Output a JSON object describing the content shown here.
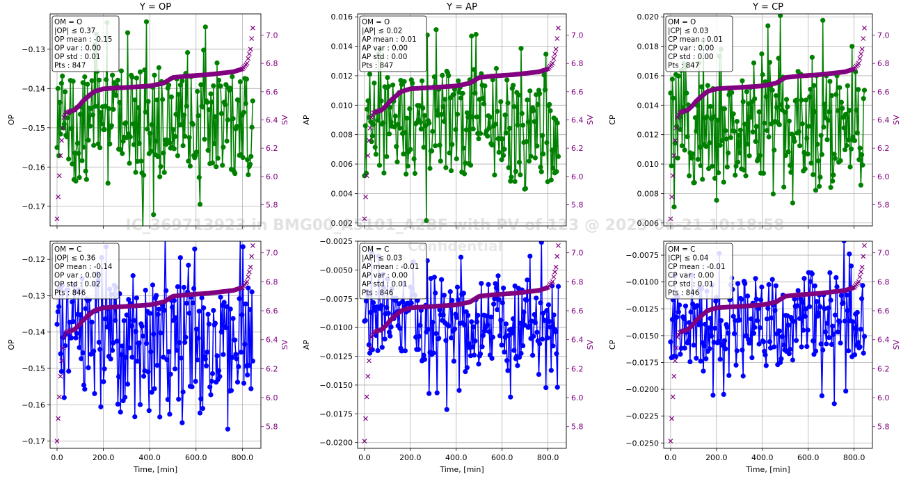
{
  "watermark": {
    "line1": "IC_369713923 in BMG00_A5101_A2BF with PV of 123 @  2025-06-21 10:18:58",
    "line2": "Confidential"
  },
  "colors": {
    "top_series": "#008000",
    "bottom_series": "#0000ff",
    "sv": "#800080",
    "grid": "#b0b0b0"
  },
  "chart_data": [
    {
      "type": "line",
      "title": "Y = OP",
      "ylabel": "OP",
      "y2label": "SV",
      "xlabel": "",
      "series_color": "#008000",
      "y_center": -0.148,
      "y_spread": 0.013,
      "y_wander": 0.006,
      "xlim": [
        -30,
        880
      ],
      "ylim": [
        -0.175,
        -0.121
      ],
      "yticks": [
        -0.17,
        -0.16,
        -0.15,
        -0.14,
        -0.13
      ],
      "yticklabels": [
        "−0.17",
        "−0.16",
        "−0.15",
        "−0.14",
        "−0.13"
      ],
      "xticks": [
        0,
        200,
        400,
        600,
        800
      ],
      "xticklabels": [
        "",
        "",
        "",
        "",
        ""
      ],
      "y2lim": [
        5.65,
        7.15
      ],
      "y2ticks": [
        5.8,
        6.0,
        6.2,
        6.4,
        6.6,
        6.8,
        7.0
      ],
      "y2ticklabels": [
        "5.8",
        "6.0",
        "6.2",
        "6.4",
        "6.6",
        "6.8",
        "7.0"
      ],
      "stats": [
        "OM = O",
        "|OP| ≤ 0.37",
        "OP mean : -0.15",
        "OP var  : 0.00",
        "OP std  : 0.01",
        "Pts          : 847"
      ]
    },
    {
      "type": "line",
      "title": "Y = AP",
      "ylabel": "AP",
      "y2label": "SV",
      "xlabel": "",
      "series_color": "#008000",
      "y_center": 0.0085,
      "y_spread": 0.0035,
      "y_wander": 0.0015,
      "xlim": [
        -30,
        880
      ],
      "ylim": [
        0.0018,
        0.0162
      ],
      "yticks": [
        0.002,
        0.004,
        0.006,
        0.008,
        0.01,
        0.012,
        0.014,
        0.016
      ],
      "yticklabels": [
        "0.002",
        "0.004",
        "0.006",
        "0.008",
        "0.010",
        "0.012",
        "0.014",
        "0.016"
      ],
      "xticks": [
        0,
        200,
        400,
        600,
        800
      ],
      "xticklabels": [
        "",
        "",
        "",
        "",
        ""
      ],
      "y2lim": [
        5.65,
        7.15
      ],
      "y2ticks": [
        5.8,
        6.0,
        6.2,
        6.4,
        6.6,
        6.8,
        7.0
      ],
      "y2ticklabels": [
        "5.8",
        "6.0",
        "6.2",
        "6.4",
        "6.6",
        "6.8",
        "7.0"
      ],
      "stats": [
        "OM = O",
        "|AP| ≤ 0.02",
        "AP mean : 0.01",
        "AP var  : 0.00",
        "AP std  : 0.00",
        "Pts          : 847"
      ]
    },
    {
      "type": "line",
      "title": "Y = CP",
      "ylabel": "CP",
      "y2label": "SV",
      "xlabel": "",
      "series_color": "#008000",
      "y_center": 0.0125,
      "y_spread": 0.0035,
      "y_wander": 0.0015,
      "xlim": [
        -30,
        880
      ],
      "ylim": [
        0.0058,
        0.0202
      ],
      "yticks": [
        0.006,
        0.008,
        0.01,
        0.012,
        0.014,
        0.016,
        0.018,
        0.02
      ],
      "yticklabels": [
        "0.006",
        "0.008",
        "0.010",
        "0.012",
        "0.014",
        "0.016",
        "0.018",
        "0.020"
      ],
      "xticks": [
        0,
        200,
        400,
        600,
        800
      ],
      "xticklabels": [
        "",
        "",
        "",
        "",
        ""
      ],
      "y2lim": [
        5.65,
        7.15
      ],
      "y2ticks": [
        5.8,
        6.0,
        6.2,
        6.4,
        6.6,
        6.8,
        7.0
      ],
      "y2ticklabels": [
        "5.8",
        "6.0",
        "6.2",
        "6.4",
        "6.6",
        "6.8",
        "7.0"
      ],
      "stats": [
        "OM = O",
        "|CP| ≤ 0.03",
        "CP mean : 0.01",
        "CP var  : 0.00",
        "CP std  : 0.00",
        "Pts          : 847"
      ]
    },
    {
      "type": "line",
      "title": "",
      "ylabel": "OP",
      "y2label": "SV",
      "xlabel": "Time, [min]",
      "series_color": "#0000ff",
      "y_center": -0.142,
      "y_spread": 0.016,
      "y_wander": 0.006,
      "xlim": [
        -30,
        880
      ],
      "ylim": [
        -0.172,
        -0.115
      ],
      "yticks": [
        -0.17,
        -0.16,
        -0.15,
        -0.14,
        -0.13,
        -0.12
      ],
      "yticklabels": [
        "−0.17",
        "−0.16",
        "−0.15",
        "−0.14",
        "−0.13",
        "−0.12"
      ],
      "xticks": [
        0,
        200,
        400,
        600,
        800
      ],
      "xticklabels": [
        "0.0",
        "200.0",
        "400.0",
        "600.0",
        "800.0"
      ],
      "y2lim": [
        5.65,
        7.08
      ],
      "y2ticks": [
        5.8,
        6.0,
        6.2,
        6.4,
        6.6,
        6.8,
        7.0
      ],
      "y2ticklabels": [
        "5.8",
        "6.0",
        "6.2",
        "6.4",
        "6.6",
        "6.8",
        "7.0"
      ],
      "stats": [
        "OM = C",
        "|OP| ≤ 0.36",
        "OP mean : -0.14",
        "OP var  : 0.00",
        "OP std  : 0.02",
        "Pts          : 846"
      ]
    },
    {
      "type": "line",
      "title": "",
      "ylabel": "AP",
      "y2label": "SV",
      "xlabel": "Time, [min]",
      "series_color": "#0000ff",
      "y_center": -0.009,
      "y_spread": 0.0035,
      "y_wander": 0.0015,
      "xlim": [
        -30,
        880
      ],
      "ylim": [
        -0.0205,
        -0.0025
      ],
      "yticks": [
        -0.02,
        -0.0175,
        -0.015,
        -0.0125,
        -0.01,
        -0.0075,
        -0.005,
        -0.0025
      ],
      "yticklabels": [
        "−0.0200",
        "−0.0175",
        "−0.0150",
        "−0.0125",
        "−0.0100",
        "−0.0075",
        "−0.0050",
        "−0.0025"
      ],
      "xticks": [
        0,
        200,
        400,
        600,
        800
      ],
      "xticklabels": [
        "0.0",
        "200.0",
        "400.0",
        "600.0",
        "800.0"
      ],
      "y2lim": [
        5.65,
        7.08
      ],
      "y2ticks": [
        5.8,
        6.0,
        6.2,
        6.4,
        6.6,
        6.8,
        7.0
      ],
      "y2ticklabels": [
        "5.8",
        "6.0",
        "6.2",
        "6.4",
        "6.6",
        "6.8",
        "7.0"
      ],
      "stats": [
        "OM = C",
        "|AP| ≤ 0.03",
        "AP mean : -0.01",
        "AP var  : 0.00",
        "AP std  : 0.01",
        "Pts          : 846"
      ]
    },
    {
      "type": "line",
      "title": "",
      "ylabel": "CP",
      "y2label": "SV",
      "xlabel": "Time, [min]",
      "series_color": "#0000ff",
      "y_center": -0.0135,
      "y_spread": 0.004,
      "y_wander": 0.0018,
      "xlim": [
        -30,
        880
      ],
      "ylim": [
        -0.0255,
        -0.0062
      ],
      "yticks": [
        -0.025,
        -0.0225,
        -0.02,
        -0.0175,
        -0.015,
        -0.0125,
        -0.01,
        -0.0075
      ],
      "yticklabels": [
        "−0.0250",
        "−0.0225",
        "−0.0200",
        "−0.0175",
        "−0.0150",
        "−0.0125",
        "−0.0100",
        "−0.0075"
      ],
      "xticks": [
        0,
        200,
        400,
        600,
        800
      ],
      "xticklabels": [
        "0.0",
        "200.0",
        "400.0",
        "600.0",
        "800.0"
      ],
      "y2lim": [
        5.65,
        7.08
      ],
      "y2ticks": [
        5.8,
        6.0,
        6.2,
        6.4,
        6.6,
        6.8,
        7.0
      ],
      "y2ticklabels": [
        "5.8",
        "6.0",
        "6.2",
        "6.4",
        "6.6",
        "6.8",
        "7.0"
      ],
      "stats": [
        "OM = C",
        "|CP| ≤ 0.04",
        "CP mean : -0.01",
        "CP var  : 0.00",
        "CP std  : 0.01",
        "Pts          : 846"
      ]
    }
  ],
  "sv_curve": {
    "t": [
      0,
      8,
      15,
      22,
      30,
      40,
      55,
      75,
      95,
      110,
      130,
      160,
      200,
      300,
      400,
      460,
      500,
      560,
      650,
      760,
      800,
      820,
      835,
      845
    ],
    "sv": [
      5.7,
      5.95,
      6.15,
      6.3,
      6.42,
      6.45,
      6.46,
      6.47,
      6.5,
      6.53,
      6.56,
      6.6,
      6.62,
      6.63,
      6.64,
      6.66,
      6.7,
      6.71,
      6.72,
      6.74,
      6.76,
      6.8,
      6.9,
      7.05
    ]
  }
}
